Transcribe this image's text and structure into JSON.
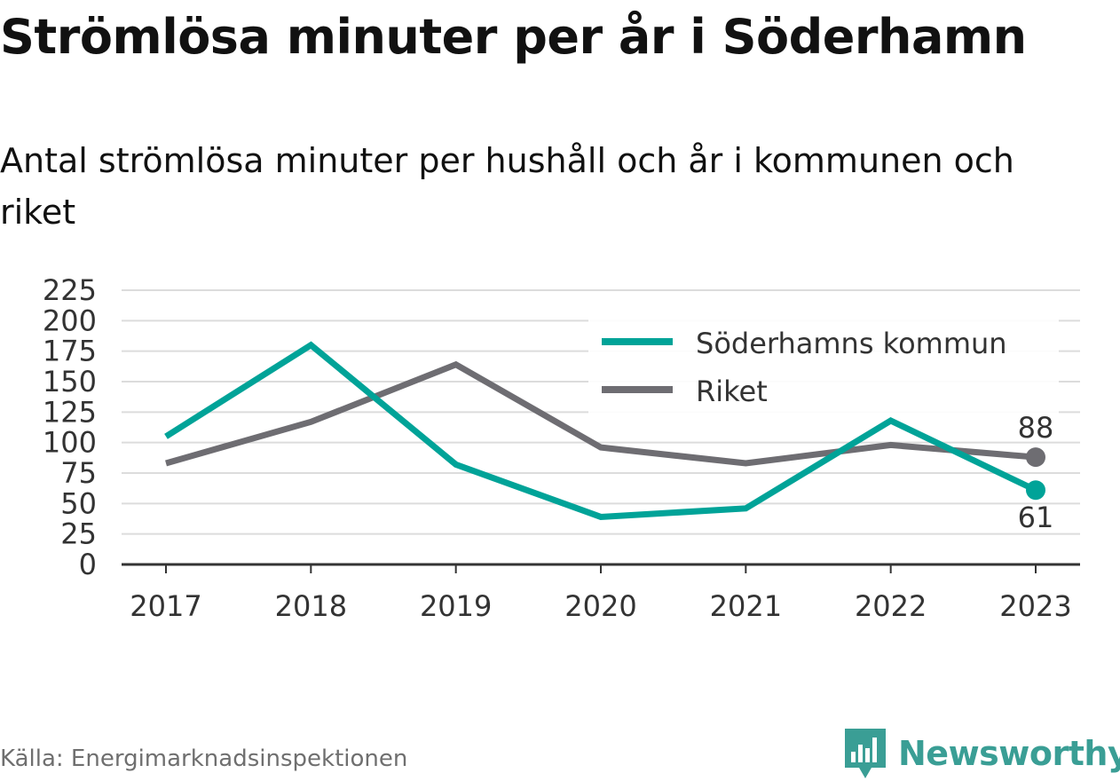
{
  "header": {
    "title": "Strömlösa minuter per år i Söderhamn",
    "subtitle": "Antal strömlösa minuter per hushåll och år i kommunen och riket"
  },
  "footer": {
    "source": "Källa: Energimarknadsinspektionen",
    "brand": "Newsworthy",
    "brand_icon": "newsworthy-logo-icon"
  },
  "chart_data": {
    "type": "line",
    "x": [
      "2017",
      "2018",
      "2019",
      "2020",
      "2021",
      "2022",
      "2023"
    ],
    "yticks": [
      "0",
      "25",
      "50",
      "75",
      "100",
      "125",
      "150",
      "175",
      "200",
      "225"
    ],
    "ylim": [
      0,
      225
    ],
    "grid": true,
    "legend_position": "top-right",
    "series": [
      {
        "name": "Söderhamns kommun",
        "color": "#00a398",
        "values": [
          105,
          180,
          82,
          39,
          46,
          118,
          61
        ],
        "end_label": "61"
      },
      {
        "name": "Riket",
        "color": "#6e6d72",
        "values": [
          83,
          117,
          164,
          96,
          83,
          98,
          88
        ],
        "end_label": "88"
      }
    ]
  }
}
